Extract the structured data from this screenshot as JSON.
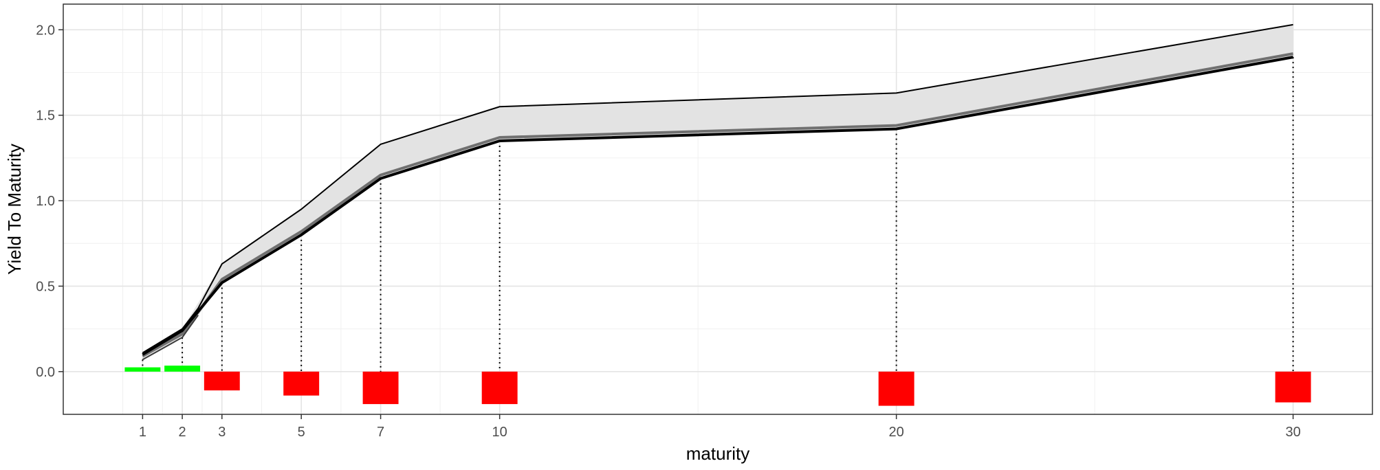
{
  "chart_data": {
    "type": "line",
    "title": "",
    "xlabel": "maturity",
    "ylabel": "Yield To Maturity",
    "xlim": [
      -1.0,
      32.0
    ],
    "ylim": [
      -0.25,
      2.15
    ],
    "x_ticks": [
      1,
      2,
      3,
      5,
      7,
      10,
      20,
      30
    ],
    "x_tick_labels": [
      "1",
      "2",
      "3",
      "5",
      "7",
      "10",
      "20",
      "30"
    ],
    "y_ticks": [
      0.0,
      0.5,
      1.0,
      1.5,
      2.0
    ],
    "y_tick_labels": [
      "0.0",
      "0.5",
      "1.0",
      "1.5",
      "2.0"
    ],
    "x_minor_gridlines": [
      0.5,
      1.5,
      2.5,
      4,
      6,
      8.5,
      15,
      25
    ],
    "y_minor_gridlines": [
      -0.25,
      0.25,
      0.75,
      1.25,
      1.75
    ],
    "grid": true,
    "legend": "none",
    "band": {
      "x": [
        1,
        2,
        3,
        5,
        7,
        10,
        20,
        30
      ],
      "upper": [
        0.11,
        0.25,
        0.63,
        0.95,
        1.33,
        1.55,
        1.63,
        2.03
      ],
      "lower": [
        0.07,
        0.2,
        0.52,
        0.8,
        1.13,
        1.35,
        1.42,
        1.84
      ],
      "fill_color": "#e3e3e3"
    },
    "series": [
      {
        "x": [
          1,
          2,
          2.4,
          3,
          5,
          7,
          10,
          20,
          30
        ],
        "values": [
          0.11,
          0.25,
          0.37,
          0.63,
          0.95,
          1.33,
          1.55,
          1.63,
          2.03
        ],
        "color": "#000000",
        "width": 2
      },
      {
        "x": [
          1,
          2,
          3,
          5,
          7,
          10,
          20,
          30
        ],
        "values": [
          0.09,
          0.22,
          0.54,
          0.82,
          1.15,
          1.37,
          1.44,
          1.86
        ],
        "color": "#707070",
        "width": 4
      },
      {
        "x": [
          1,
          2,
          3,
          5,
          7,
          10,
          20,
          30
        ],
        "values": [
          0.1,
          0.24,
          0.52,
          0.8,
          1.13,
          1.35,
          1.42,
          1.84
        ],
        "color": "#000000",
        "width": 4
      },
      {
        "x": [
          1,
          2,
          2.4
        ],
        "values": [
          0.07,
          0.2,
          0.33
        ],
        "color": "#3a3a3a",
        "width": 2
      }
    ],
    "drop_lines": {
      "x": [
        1,
        2,
        3,
        5,
        7,
        10,
        20,
        30
      ],
      "from": [
        0.07,
        0.2,
        0.52,
        0.8,
        1.13,
        1.35,
        1.42,
        1.84
      ]
    },
    "bars": {
      "x": [
        1,
        2,
        3,
        5,
        7,
        10,
        20,
        30
      ],
      "values": [
        0.025,
        0.035,
        -0.11,
        -0.14,
        -0.19,
        -0.19,
        -0.2,
        -0.18
      ],
      "positive_color": "#00ff00",
      "negative_color": "#ff0000"
    }
  }
}
